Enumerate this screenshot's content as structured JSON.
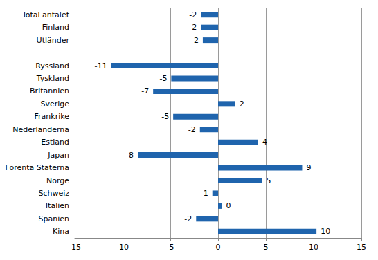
{
  "chart_data": {
    "type": "bar",
    "orientation": "horizontal",
    "categories": [
      "Total antalet",
      "Finland",
      "Utländer",
      null,
      "Ryssland",
      "Tyskland",
      "Britannien",
      "Sverige",
      "Frankrike",
      "Nederländerna",
      "Estland",
      "Japan",
      "Förenta Staterna",
      "Norge",
      "Schweiz",
      "Italien",
      "Spanien",
      "Kina"
    ],
    "values": [
      -1.8,
      -1.8,
      -1.6,
      null,
      -11.2,
      -4.9,
      -6.8,
      1.8,
      -4.7,
      -1.9,
      4.2,
      -8.4,
      8.8,
      4.6,
      -0.6,
      0.4,
      -2.3,
      10.3
    ],
    "value_labels": [
      "-2",
      "-2",
      "-2",
      null,
      "-11",
      "-5",
      "-7",
      "2",
      "-5",
      "-2",
      "4",
      "-8",
      "9",
      "5",
      "-1",
      "0",
      "-2",
      "10"
    ],
    "color": "#1f64ad",
    "xlim": [
      -15,
      15
    ],
    "xticks": [
      -15,
      -10,
      -5,
      0,
      5,
      10,
      15
    ],
    "grid": true,
    "data_labels": true
  }
}
